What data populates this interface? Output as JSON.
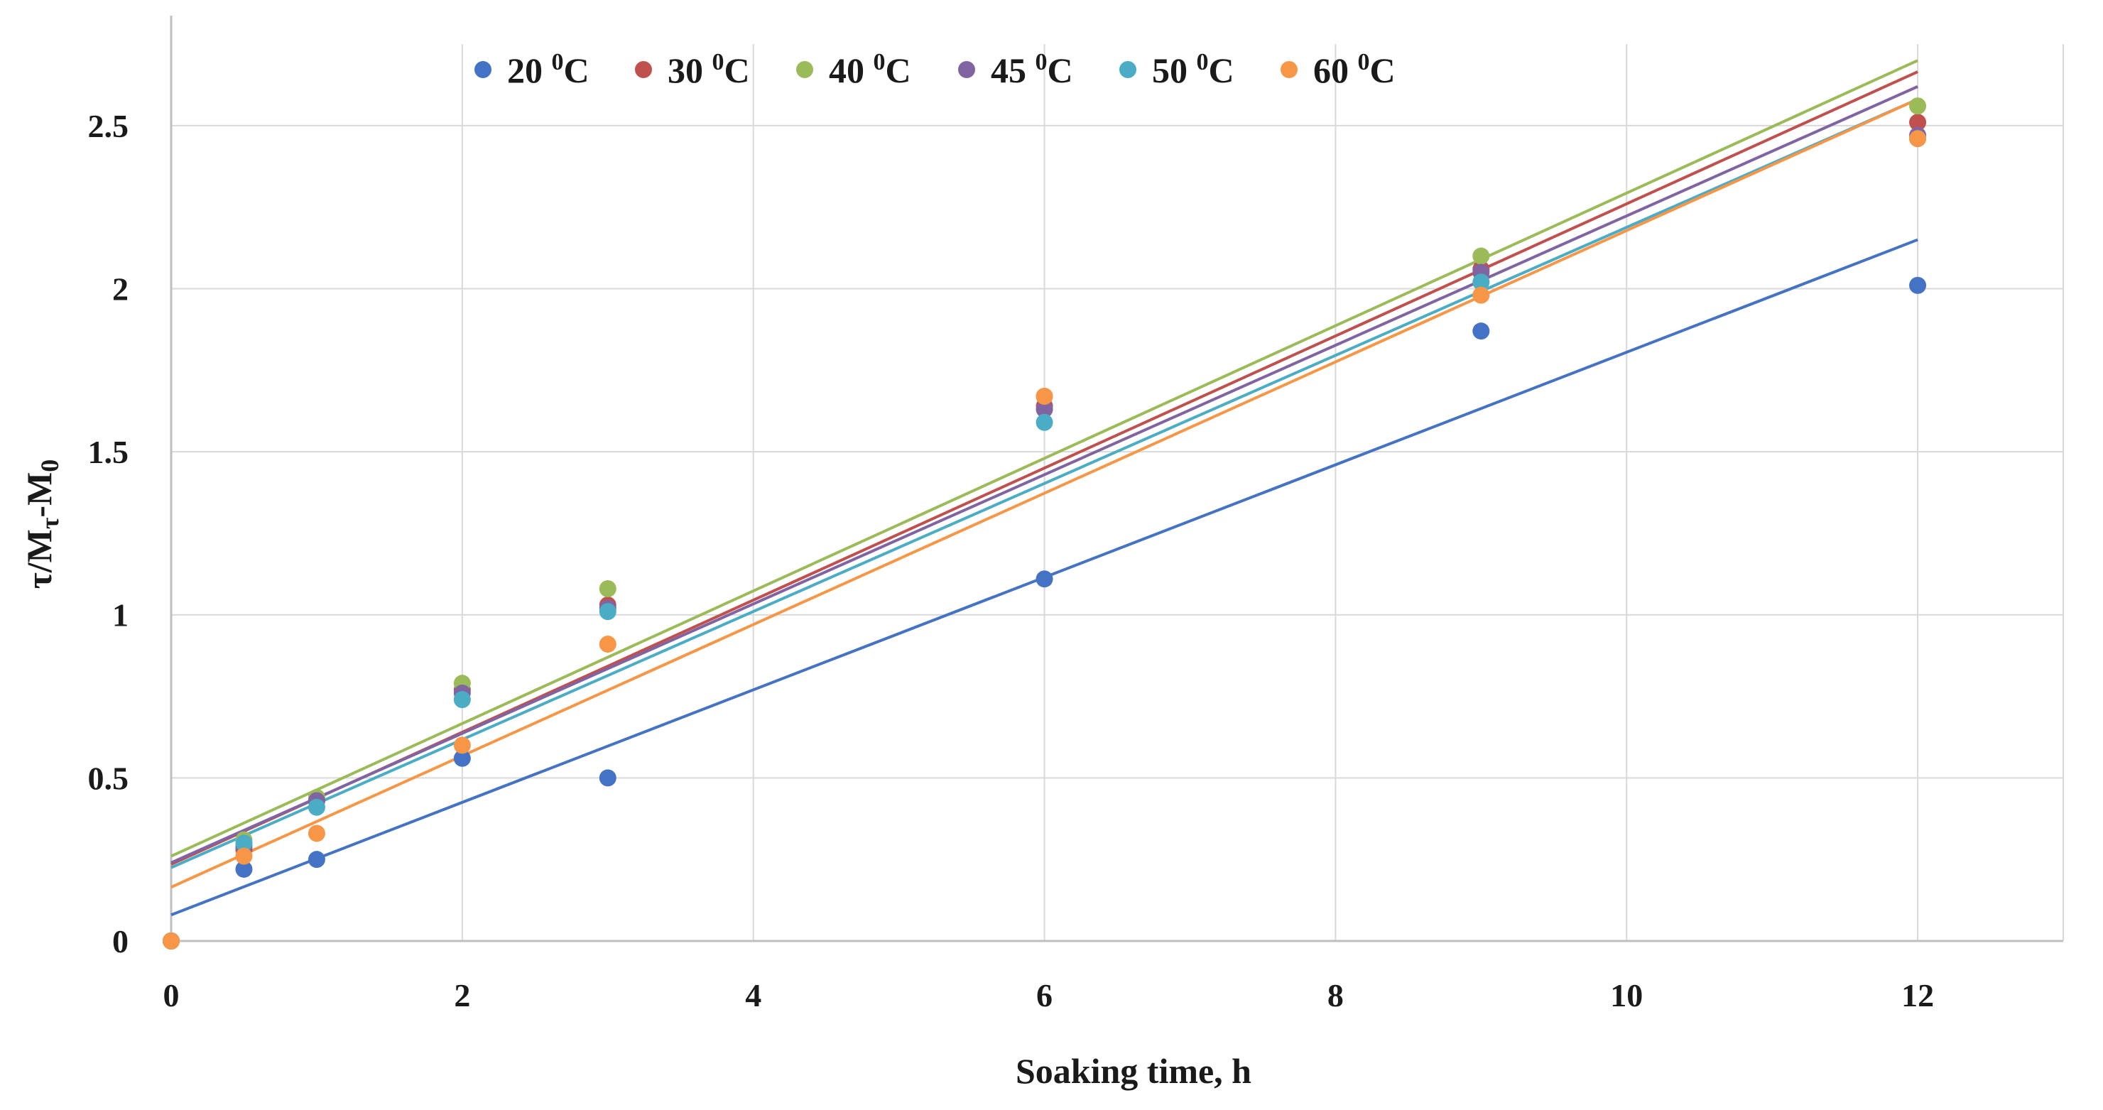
{
  "chart_data": {
    "type": "scatter",
    "title": "",
    "xlabel": "Soaking time, h",
    "ylabel_main": "τ/M",
    "ylabel_sub1": "τ",
    "ylabel_mid": "-M",
    "ylabel_sub2": "0",
    "xlim": [
      0,
      13
    ],
    "ylim": [
      0,
      2.75
    ],
    "xticks": [
      0,
      2,
      4,
      6,
      8,
      10,
      12
    ],
    "xtick_labels": [
      "0",
      "2",
      "4",
      "6",
      "8",
      "10",
      "12"
    ],
    "yticks": [
      0,
      0.5,
      1,
      1.5,
      2,
      2.5
    ],
    "ytick_labels": [
      "0",
      "0.5",
      "1",
      "1.5",
      "2",
      "2.5"
    ],
    "grid": true,
    "legend_position": "top-center",
    "x": [
      0,
      0.5,
      1,
      2,
      3,
      6,
      9,
      12
    ],
    "series": [
      {
        "name": "20",
        "unit_sup": "0",
        "unit": "C",
        "color": "#4472C4",
        "values": [
          0,
          0.22,
          0.25,
          0.56,
          0.5,
          1.11,
          1.87,
          2.01
        ],
        "trend": {
          "intercept": 0.08,
          "slope": 0.1725
        }
      },
      {
        "name": "30",
        "unit_sup": "0",
        "unit": "C",
        "color": "#C0504D",
        "values": [
          0,
          0.28,
          0.43,
          0.77,
          1.03,
          1.64,
          2.06,
          2.51
        ],
        "trend": {
          "intercept": 0.235,
          "slope": 0.2025
        }
      },
      {
        "name": "40",
        "unit_sup": "0",
        "unit": "C",
        "color": "#9BBB59",
        "values": [
          0,
          0.31,
          0.44,
          0.79,
          1.08,
          1.67,
          2.1,
          2.56
        ],
        "trend": {
          "intercept": 0.26,
          "slope": 0.2033
        }
      },
      {
        "name": "45",
        "unit_sup": "0",
        "unit": "C",
        "color": "#8064A2",
        "values": [
          0,
          0.29,
          0.43,
          0.76,
          1.02,
          1.63,
          2.05,
          2.47
        ],
        "trend": {
          "intercept": 0.24,
          "slope": 0.1983
        }
      },
      {
        "name": "50",
        "unit_sup": "0",
        "unit": "C",
        "color": "#4BACC6",
        "values": [
          0,
          0.3,
          0.41,
          0.74,
          1.01,
          1.59,
          2.02,
          2.46
        ],
        "trend": {
          "intercept": 0.225,
          "slope": 0.1963
        }
      },
      {
        "name": "60",
        "unit_sup": "0",
        "unit": "C",
        "color": "#F79646",
        "values": [
          0,
          0.26,
          0.33,
          0.6,
          0.91,
          1.67,
          1.98,
          2.46
        ],
        "trend": {
          "intercept": 0.165,
          "slope": 0.2013
        }
      }
    ]
  }
}
